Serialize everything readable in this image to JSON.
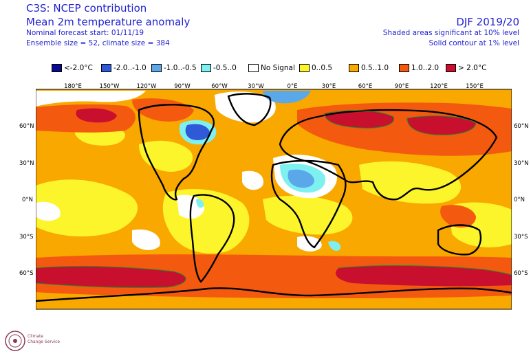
{
  "header": {
    "title": "C3S: NCEP contribution",
    "subtitle": "Mean 2m temperature anomaly",
    "forecast_start": "Nominal forecast start: 01/11/19",
    "ensemble": "Ensemble size = 52, climate size = 384",
    "season": "DJF 2019/20",
    "significance_shaded": "Shaded areas significant at 10% level",
    "significance_contour": "Solid contour at 1% level"
  },
  "legend": [
    {
      "label": "<-2.0°C",
      "color": "#0a0a8c"
    },
    {
      "label": "-2.0..-1.0",
      "color": "#2f59d6"
    },
    {
      "label": "-1.0..-0.5",
      "color": "#5aa8ea"
    },
    {
      "label": "-0.5..0",
      "color": "#7ff0f0"
    },
    {
      "label": "No Signal",
      "color": "#ffffff"
    },
    {
      "label": "0..0.5",
      "color": "#fdf52b"
    },
    {
      "label": "0.5..1.0",
      "color": "#f9a800"
    },
    {
      "label": "1.0..2.0",
      "color": "#f45a0f"
    },
    {
      "label": "> 2.0°C",
      "color": "#c8102e"
    }
  ],
  "axes": {
    "lon_labels": [
      "180°E",
      "150°W",
      "120°W",
      "90°W",
      "60°W",
      "30°W",
      "0°E",
      "30°E",
      "60°E",
      "90°E",
      "120°E",
      "150°E"
    ],
    "lat_labels": [
      "60°N",
      "30°N",
      "0°N",
      "30°S",
      "60°S"
    ]
  },
  "logo": {
    "text_line1": "Climate",
    "text_line2": "Change Service"
  }
}
